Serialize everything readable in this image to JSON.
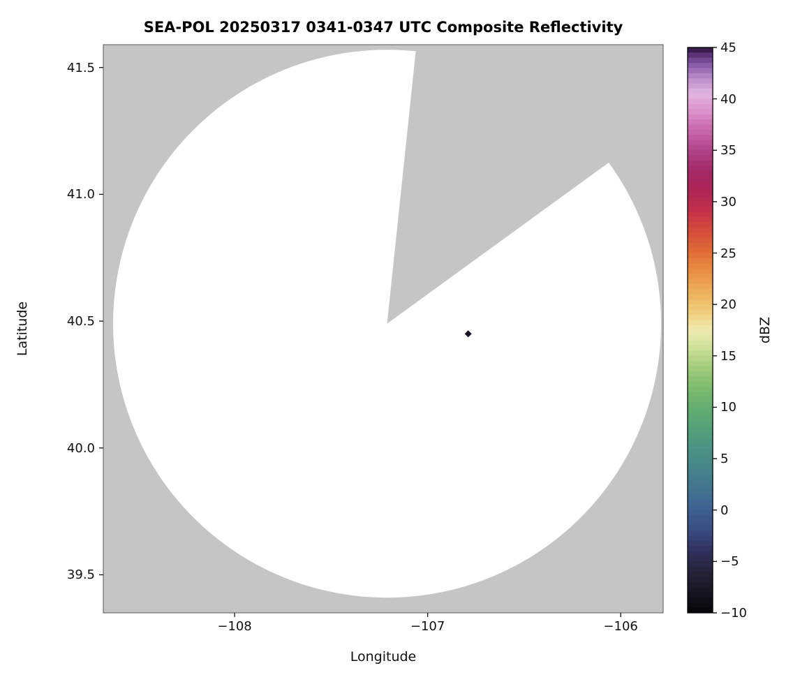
{
  "chart_data": {
    "type": "heatmap",
    "title": "SEA-POL 20250317 0341-0347 UTC Composite Reflectivity",
    "xlabel": "Longitude",
    "ylabel": "Latitude",
    "xlim": [
      -108.68,
      -105.78
    ],
    "ylim": [
      39.35,
      41.59
    ],
    "grid": false,
    "x_ticks": [
      {
        "v": -108,
        "label": "−108"
      },
      {
        "v": -107,
        "label": "−107"
      },
      {
        "v": -106,
        "label": "−106"
      }
    ],
    "y_ticks": [
      {
        "v": 41.5,
        "label": "41.5"
      },
      {
        "v": 41.0,
        "label": "41.0"
      },
      {
        "v": 40.5,
        "label": "40.5"
      },
      {
        "v": 40.0,
        "label": "40.0"
      },
      {
        "v": 39.5,
        "label": "39.5"
      }
    ],
    "colorbar": {
      "label": "dBZ",
      "min": -10,
      "max": 45,
      "band_dbz": 0.5,
      "ticks": [
        {
          "v": 45,
          "label": "45"
        },
        {
          "v": 40,
          "label": "40"
        },
        {
          "v": 35,
          "label": "35"
        },
        {
          "v": 30,
          "label": "30"
        },
        {
          "v": 25,
          "label": "25"
        },
        {
          "v": 20,
          "label": "20"
        },
        {
          "v": 15,
          "label": "15"
        },
        {
          "v": 10,
          "label": "10"
        },
        {
          "v": 5,
          "label": "5"
        },
        {
          "v": 0,
          "label": "0"
        },
        {
          "v": -5,
          "label": "−5"
        },
        {
          "v": -10,
          "label": "−10"
        }
      ]
    },
    "radar_coverage": {
      "center_lon": -107.21,
      "center_lat": 40.49,
      "radius_deg": 1.08,
      "missing_sector_azimuth_deg": [
        6,
        54
      ]
    },
    "points": [
      {
        "lon": -106.79,
        "lat": 40.45,
        "shape": "diamond",
        "color": "#191021"
      }
    ],
    "colors": {
      "background": "#ffffff",
      "outside_coverage": "#c5c5c5",
      "coverage": "#ffffff",
      "frame": "#555555"
    },
    "colormap_stops": [
      {
        "v": -10,
        "color": "#060608"
      },
      {
        "v": -8,
        "color": "#17151f"
      },
      {
        "v": -6,
        "color": "#262339"
      },
      {
        "v": -4,
        "color": "#31305d"
      },
      {
        "v": -2,
        "color": "#394b80"
      },
      {
        "v": 0,
        "color": "#3d5f92"
      },
      {
        "v": 2,
        "color": "#42738f"
      },
      {
        "v": 4,
        "color": "#468489"
      },
      {
        "v": 6,
        "color": "#4b9383"
      },
      {
        "v": 8,
        "color": "#55a17a"
      },
      {
        "v": 10,
        "color": "#63ad6e"
      },
      {
        "v": 12,
        "color": "#7fbc6f"
      },
      {
        "v": 14,
        "color": "#a5cd7d"
      },
      {
        "v": 16,
        "color": "#d2e39c"
      },
      {
        "v": 17.5,
        "color": "#efeab0"
      },
      {
        "v": 19,
        "color": "#f0d182"
      },
      {
        "v": 21,
        "color": "#edb35c"
      },
      {
        "v": 23,
        "color": "#e89245"
      },
      {
        "v": 25,
        "color": "#e06e38"
      },
      {
        "v": 27,
        "color": "#d54e3b"
      },
      {
        "v": 29,
        "color": "#c43349"
      },
      {
        "v": 31,
        "color": "#ad2455"
      },
      {
        "v": 33,
        "color": "#a32866"
      },
      {
        "v": 35,
        "color": "#b04488"
      },
      {
        "v": 37,
        "color": "#c868ab"
      },
      {
        "v": 39,
        "color": "#dc96cc"
      },
      {
        "v": 40.5,
        "color": "#e2b6de"
      },
      {
        "v": 42,
        "color": "#b98cc9"
      },
      {
        "v": 43.5,
        "color": "#8153a2"
      },
      {
        "v": 44.5,
        "color": "#4d2a67"
      },
      {
        "v": 45,
        "color": "#2a1039"
      }
    ]
  }
}
